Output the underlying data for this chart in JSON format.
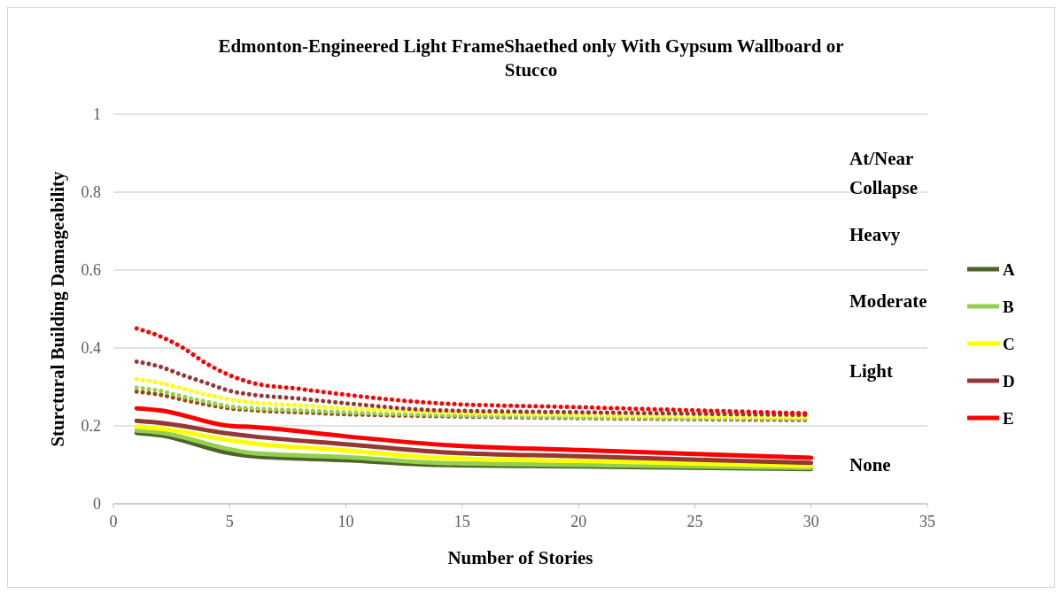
{
  "chart_data": {
    "type": "line",
    "title": "Edmonton-Engineered Light FrameShaethed only With Gypsum Wallboard or Stucco",
    "xlabel": "Number of Stories",
    "ylabel": "Sturctural Building Damageability",
    "xlim": [
      0,
      35
    ],
    "xticks": [
      0,
      5,
      10,
      15,
      20,
      25,
      30,
      35
    ],
    "ylim": [
      0,
      1
    ],
    "yticks": [
      0,
      0.2,
      0.4,
      0.6,
      0.8,
      1
    ],
    "grid": "y",
    "legend": "right",
    "marker": "none",
    "x": [
      1,
      2,
      5,
      6,
      10,
      14,
      20,
      30
    ],
    "series": [
      {
        "name": "A",
        "color": "#4f6228",
        "line_style": "solid",
        "values": [
          0.182,
          0.176,
          0.13,
          0.122,
          0.112,
          0.1,
          0.096,
          0.089
        ]
      },
      {
        "name": "B",
        "color": "#92d050",
        "line_style": "solid",
        "values": [
          0.188,
          0.183,
          0.14,
          0.13,
          0.12,
          0.105,
          0.1,
          0.092
        ]
      },
      {
        "name": "C",
        "color": "#ffff00",
        "line_style": "solid",
        "values": [
          0.198,
          0.193,
          0.163,
          0.155,
          0.137,
          0.118,
          0.11,
          0.097
        ]
      },
      {
        "name": "D",
        "color": "#953735",
        "line_style": "solid",
        "values": [
          0.213,
          0.208,
          0.18,
          0.173,
          0.153,
          0.133,
          0.122,
          0.105
        ]
      },
      {
        "name": "E",
        "color": "#ff0000",
        "line_style": "solid",
        "values": [
          0.245,
          0.24,
          0.2,
          0.197,
          0.173,
          0.152,
          0.138,
          0.118
        ]
      },
      {
        "color": "#984807",
        "line_style": "dotted",
        "x": [
          1,
          2,
          3,
          4,
          5,
          6,
          8,
          10,
          14,
          20,
          30
        ],
        "values": [
          0.288,
          0.28,
          0.267,
          0.255,
          0.245,
          0.24,
          0.235,
          0.23,
          0.225,
          0.22,
          0.215
        ]
      },
      {
        "color": "#92d050",
        "line_style": "dotted",
        "x": [
          1,
          2,
          3,
          4,
          5,
          6,
          8,
          10,
          14,
          20,
          30
        ],
        "values": [
          0.298,
          0.29,
          0.275,
          0.262,
          0.25,
          0.245,
          0.24,
          0.235,
          0.228,
          0.222,
          0.218
        ]
      },
      {
        "color": "#ffff00",
        "line_style": "dotted",
        "x": [
          1,
          2,
          3,
          4,
          5,
          6,
          8,
          10,
          14,
          20,
          30
        ],
        "values": [
          0.32,
          0.31,
          0.295,
          0.28,
          0.268,
          0.26,
          0.253,
          0.245,
          0.235,
          0.228,
          0.222
        ]
      },
      {
        "color": "#953735",
        "line_style": "dotted",
        "x": [
          1,
          2,
          3,
          4,
          5,
          6,
          8,
          10,
          14,
          20,
          30
        ],
        "values": [
          0.365,
          0.352,
          0.33,
          0.31,
          0.29,
          0.28,
          0.27,
          0.258,
          0.24,
          0.235,
          0.228
        ]
      },
      {
        "color": "#ff0000",
        "line_style": "dotted",
        "x": [
          1,
          2,
          3,
          4,
          5,
          6,
          8,
          10,
          14,
          20,
          30
        ],
        "values": [
          0.45,
          0.43,
          0.4,
          0.36,
          0.33,
          0.31,
          0.295,
          0.28,
          0.258,
          0.248,
          0.232
        ]
      }
    ],
    "annotations": [
      "At/Near Collapse",
      "Heavy",
      "Moderate",
      "Light",
      "None"
    ]
  }
}
